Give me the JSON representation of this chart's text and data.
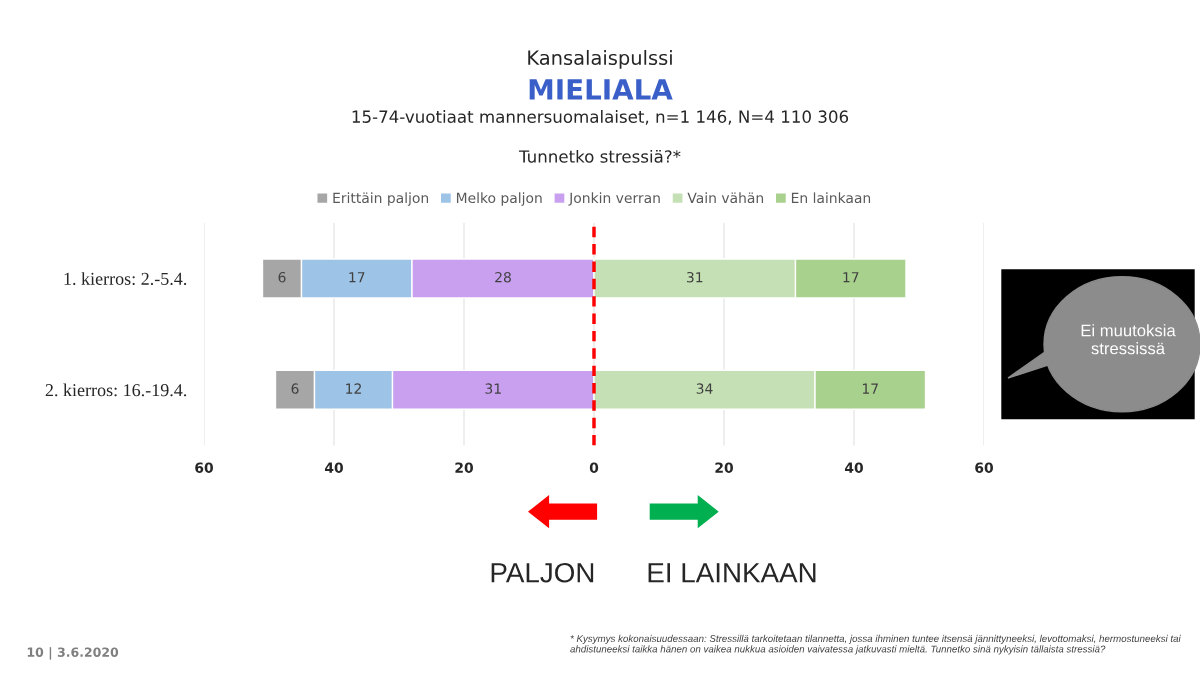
{
  "chart_data": {
    "type": "bar",
    "orientation": "horizontal",
    "title": "Kansalaispulssi",
    "subtitle": "MIELIALA",
    "categories": [
      "1. kierros: 2.-5.4.",
      "2. kierros: 16.-19.4."
    ],
    "series": [
      {
        "name": "Erittäin paljon",
        "color": "#a6a6a6",
        "values": [
          6,
          6
        ],
        "base": [
          -51,
          -49
        ]
      },
      {
        "name": "Melko paljon",
        "color": "#9dc3e6",
        "values": [
          17,
          12
        ],
        "base": [
          -45,
          -43
        ]
      },
      {
        "name": "Jonkin verran",
        "color": "#c9a0f0",
        "values": [
          28,
          31
        ],
        "base": [
          -28,
          -31
        ]
      },
      {
        "name": "Vain vähän",
        "color": "#c5e0b4",
        "values": [
          31,
          34
        ],
        "base": [
          0,
          0
        ]
      },
      {
        "name": "En lainkaan",
        "color": "#a9d18e",
        "values": [
          17,
          17
        ],
        "base": [
          31,
          34
        ]
      }
    ],
    "xlim": [
      -60,
      60
    ],
    "xticks": [
      {
        "value": -60,
        "label": "60"
      },
      {
        "value": -40,
        "label": "40"
      },
      {
        "value": -20,
        "label": "20"
      },
      0,
      20,
      40,
      60
    ],
    "ref_lines": [
      {
        "axis": "x",
        "value": 0,
        "color": "#ff0000",
        "line_style": "dashed"
      }
    ],
    "data_labels": true,
    "grid": "x",
    "legend": "top",
    "annotations": [
      "15-74-vuotiaat mannersuomalaiset, n=1 146, N=4 110 306",
      "Tunnetko stressiä?*",
      "Ei muutoksia stressissä",
      "PALJON",
      "EI LAINKAAN",
      "10 | 3.6.2020",
      "* Kysymys kokonaisuudessaan: Stressillä tarkoitetaan tilannetta, jossa ihminen tuntee itsensä jännittyneeksi, levottomaksi, hermostuneeksi tai ahdistuneeksi taikka hänen on vaikea nukkua asioiden vaivatessa jatkuvasti mieltä. Tunnetko sinä nykyisin tällaista stressiä?"
    ]
  }
}
